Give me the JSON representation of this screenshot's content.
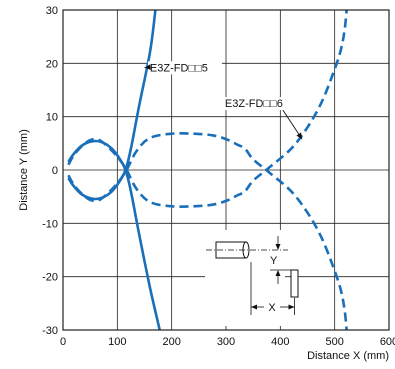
{
  "chart_data": {
    "type": "line",
    "title": "",
    "xlabel": "Distance X (mm)",
    "ylabel": "Distance Y (mm)",
    "xlim": [
      0,
      600
    ],
    "ylim": [
      -30,
      30
    ],
    "xticks": [
      0,
      100,
      200,
      300,
      400,
      500,
      600
    ],
    "yticks": [
      30,
      20,
      10,
      0,
      -10,
      -20,
      -30
    ],
    "grid": true,
    "legend": "none",
    "colors": {
      "series": "#1a6fba",
      "grid": "#222222",
      "diagram": "#111111"
    },
    "series": [
      {
        "name": "E3Z-FD□□5",
        "style": "solid",
        "segments": [
          {
            "x": [
              10,
              18,
              35,
              55,
              72,
              90,
              105,
              115,
              125,
              140,
              160,
              178
            ],
            "y": [
              1.5,
              2.8,
              4.6,
              5.4,
              5.2,
              4.0,
              2.0,
              0,
              -4,
              -12,
              -22,
              -30
            ]
          },
          {
            "x": [
              10,
              18,
              35,
              55,
              72,
              90,
              105,
              115,
              125,
              140,
              160,
              170
            ],
            "y": [
              -1.5,
              -2.8,
              -4.6,
              -5.4,
              -5.2,
              -4.0,
              -2.0,
              0,
              4,
              12,
              22,
              30
            ]
          }
        ]
      },
      {
        "name": "E3Z-FD□□6",
        "style": "dashed",
        "segments": [
          {
            "x": [
              10,
              20,
              35,
              50,
              65,
              80,
              100,
              117,
              135,
              160,
              200,
              240,
              275,
              300,
              320,
              335,
              350,
              380,
              420,
              450,
              475,
              495,
              510,
              518,
              522
            ],
            "y": [
              -1.0,
              -2.8,
              -4.5,
              -5.6,
              -5.7,
              -4.6,
              -2.5,
              0,
              3.5,
              6.0,
              6.8,
              6.8,
              6.5,
              5.8,
              4.8,
              4.0,
              2.0,
              -0.5,
              -4.0,
              -8.0,
              -12.5,
              -17.5,
              -22.0,
              -26.0,
              -30.0
            ]
          },
          {
            "x": [
              10,
              20,
              35,
              50,
              65,
              80,
              100,
              117,
              135,
              160,
              200,
              240,
              275,
              300,
              320,
              335,
              350,
              380,
              420,
              450,
              475,
              495,
              510,
              518,
              522
            ],
            "y": [
              1.0,
              2.8,
              4.5,
              5.6,
              5.7,
              4.6,
              2.5,
              0,
              -3.5,
              -6.0,
              -6.8,
              -6.8,
              -6.5,
              -5.8,
              -4.8,
              -4.0,
              -2.0,
              0.5,
              4.0,
              8.0,
              12.5,
              17.5,
              22.0,
              26.0,
              30.0
            ]
          }
        ]
      }
    ],
    "annotations": [
      {
        "text": "E3Z-FD□□5",
        "x": 160,
        "y": 18.5,
        "arrow_to": [
          150,
          19.2
        ]
      },
      {
        "text": "E3Z-FD□□6",
        "x": 298,
        "y": 11.8,
        "arrow_to": [
          440,
          5.8
        ]
      }
    ],
    "inset_labels": {
      "x": "X",
      "y": "Y"
    }
  }
}
